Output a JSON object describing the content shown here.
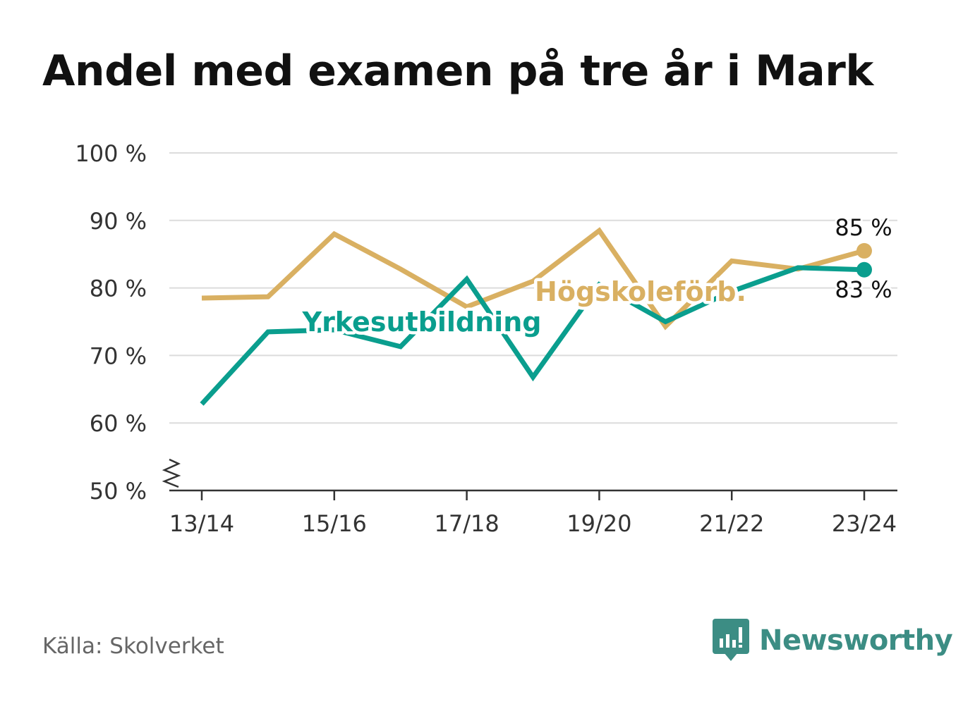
{
  "title": "Andel med examen på tre år i Mark",
  "source": "Källa: Skolverket",
  "brand": {
    "name": "Newsworthy",
    "icon": "newsworthy-logo-icon",
    "color": "#3c8d84"
  },
  "chart_data": {
    "type": "line",
    "title": "Andel med examen på tre år i Mark",
    "x": [
      "13/14",
      "14/15",
      "15/16",
      "16/17",
      "17/18",
      "18/19",
      "19/20",
      "20/21",
      "21/22",
      "22/23",
      "23/24"
    ],
    "x_tick_labels": [
      "13/14",
      "15/16",
      "17/18",
      "19/20",
      "21/22",
      "23/24"
    ],
    "y_tick_labels": [
      "50 %",
      "60 %",
      "70 %",
      "80 %",
      "90 %",
      "100 %"
    ],
    "y_ticks": [
      50,
      60,
      70,
      80,
      90,
      100
    ],
    "ylim": [
      50,
      100
    ],
    "y_axis_break": true,
    "grid": true,
    "series": [
      {
        "name": "Högskoleförb.",
        "color": "#d9b062",
        "values": [
          78.5,
          78.7,
          88.0,
          82.8,
          77.2,
          81.0,
          88.5,
          74.3,
          84.0,
          82.8,
          85.5
        ],
        "end_label": "85 %"
      },
      {
        "name": "Yrkesutbildning",
        "color": "#0a9e8e",
        "values": [
          62.8,
          73.5,
          73.8,
          71.3,
          81.3,
          66.8,
          80.5,
          75.0,
          79.5,
          83.0,
          82.7
        ],
        "end_label": "83 %"
      }
    ]
  }
}
